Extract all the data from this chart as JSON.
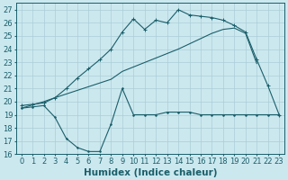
{
  "bg_color": "#cce8ef",
  "grid_color": "#aacdd6",
  "line_color": "#1a5f6a",
  "xlabel": "Humidex (Indice chaleur)",
  "xlabel_fontsize": 7.5,
  "tick_fontsize": 6,
  "xlim": [
    -0.5,
    23.5
  ],
  "ylim": [
    16,
    27.5
  ],
  "yticks": [
    16,
    17,
    18,
    19,
    20,
    21,
    22,
    23,
    24,
    25,
    26,
    27
  ],
  "xticks": [
    0,
    1,
    2,
    3,
    4,
    5,
    6,
    7,
    8,
    9,
    10,
    11,
    12,
    13,
    14,
    15,
    16,
    17,
    18,
    19,
    20,
    21,
    22,
    23
  ],
  "line1_x": [
    0,
    1,
    2,
    3,
    4,
    5,
    6,
    7,
    8,
    9,
    10,
    11,
    12,
    13,
    14,
    15,
    16,
    17,
    18,
    19,
    20,
    21,
    22,
    23
  ],
  "line1_y": [
    19.7,
    19.8,
    19.9,
    20.3,
    21.0,
    21.8,
    22.5,
    23.2,
    24.0,
    25.3,
    26.3,
    25.5,
    26.2,
    26.0,
    27.0,
    26.6,
    26.5,
    26.4,
    26.2,
    25.8,
    25.3,
    23.2,
    21.2,
    19.0
  ],
  "line2_x": [
    0,
    2,
    3,
    8,
    9,
    14,
    17,
    18,
    19,
    20,
    21
  ],
  "line2_y": [
    19.5,
    20.0,
    20.3,
    21.7,
    22.3,
    24.0,
    25.2,
    25.5,
    25.6,
    25.2,
    22.9
  ],
  "line3_x": [
    0,
    1,
    2,
    3,
    4,
    5,
    6,
    7,
    8,
    9,
    10,
    11,
    12,
    13,
    14,
    15,
    16,
    17,
    18,
    19,
    20,
    21,
    22,
    23
  ],
  "line3_y": [
    19.5,
    19.6,
    19.7,
    18.8,
    17.2,
    16.5,
    16.2,
    16.2,
    18.3,
    21.0,
    19.0,
    19.0,
    19.0,
    19.2,
    19.2,
    19.2,
    19.0,
    19.0,
    19.0,
    19.0,
    19.0,
    19.0,
    19.0,
    19.0
  ]
}
